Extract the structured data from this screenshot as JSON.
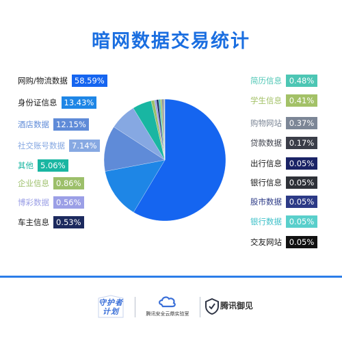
{
  "title": "暗网数据交易统计",
  "colors": {
    "title": "#1a6ee0",
    "divider": "#2b7de9",
    "logo_blue": "#3a6fd8",
    "footer_text": "#333333"
  },
  "chart_data": {
    "type": "pie",
    "title": "暗网数据交易统计",
    "unit": "%",
    "start_angle_deg": 0,
    "direction": "clockwise",
    "slices": [
      {
        "label": "网购/物流数据",
        "value": 58.59,
        "display": "58.59%",
        "color": "#1565f0"
      },
      {
        "label": "身份证信息",
        "value": 13.43,
        "display": "13.43%",
        "color": "#1e86e6"
      },
      {
        "label": "酒店数据",
        "value": 12.15,
        "display": "12.15%",
        "color": "#5f8bd8"
      },
      {
        "label": "社交账号数据",
        "value": 7.14,
        "display": "7.14%",
        "color": "#86a8e2"
      },
      {
        "label": "其他",
        "value": 5.06,
        "display": "5.06%",
        "color": "#19b6a2"
      },
      {
        "label": "企业信息",
        "value": 0.86,
        "display": "0.86%",
        "color": "#9cbf6a"
      },
      {
        "label": "博彩数据",
        "value": 0.56,
        "display": "0.56%",
        "color": "#9b9fe6"
      },
      {
        "label": "车主信息",
        "value": 0.53,
        "display": "0.53%",
        "color": "#1c2a5e"
      },
      {
        "label": "简历信息",
        "value": 0.48,
        "display": "0.48%",
        "color": "#4dc6b4"
      },
      {
        "label": "学生信息",
        "value": 0.41,
        "display": "0.41%",
        "color": "#a3c167"
      },
      {
        "label": "购物网站",
        "value": 0.37,
        "display": "0.37%",
        "color": "#7c8696"
      },
      {
        "label": "贷款数据",
        "value": 0.17,
        "display": "0.17%",
        "color": "#3a3d48"
      },
      {
        "label": "出行信息",
        "value": 0.05,
        "display": "0.05%",
        "color": "#1a2366"
      },
      {
        "label": "银行信息",
        "value": 0.05,
        "display": "0.05%",
        "color": "#2e3138"
      },
      {
        "label": "股市数据",
        "value": 0.05,
        "display": "0.05%",
        "color": "#2c3a86"
      },
      {
        "label": "银行数据",
        "value": 0.05,
        "display": "0.05%",
        "color": "#59cfcb"
      },
      {
        "label": "交友网站",
        "value": 0.05,
        "display": "0.05%",
        "color": "#111111"
      }
    ]
  },
  "footer": {
    "logo1_line1": "守护者",
    "logo1_line2": "计划",
    "logo1_icon": "star-shield-icon",
    "logo2_text": "腾讯安全云鼎实验室",
    "logo2_icon": "cloud-lab-icon",
    "logo3_text": "腾讯御见",
    "logo3_icon": "shield-icon"
  }
}
